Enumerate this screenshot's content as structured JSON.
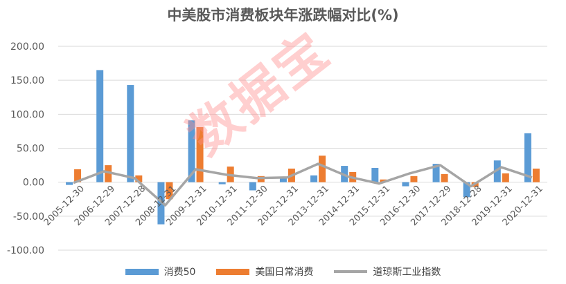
{
  "watermark": "数据宝",
  "colors": {
    "consumer50": "#5b9bd5",
    "us_staples": "#ed7d31",
    "dow": "#a5a5a5",
    "grid": "#d9d9d9",
    "axis_text": "#595959"
  },
  "chart_data": {
    "type": "bar",
    "title": "中美股市消费板块年涨跌幅对比(%)",
    "xlabel": "",
    "ylabel": "",
    "ylim": [
      -100,
      200
    ],
    "yticks": [
      -100,
      -50,
      0,
      50,
      100,
      150,
      200
    ],
    "ytick_labels": [
      "-100.00",
      "-50.00",
      "0.00",
      "50.00",
      "100.00",
      "150.00",
      "200.00"
    ],
    "grid": true,
    "legend": "bottom",
    "categories": [
      "2005-12-30",
      "2006-12-29",
      "2007-12-28",
      "2008-12-31",
      "2009-12-31",
      "2010-12-31",
      "2011-12-30",
      "2012-12-31",
      "2013-12-31",
      "2014-12-31",
      "2015-12-31",
      "2016-12-30",
      "2017-12-29",
      "2018-12-28",
      "2019-12-31",
      "2020-12-31"
    ],
    "series": [
      {
        "name": "消费50",
        "type": "bar",
        "values": [
          -4,
          165,
          143,
          -62,
          91,
          -3,
          -12,
          8,
          10,
          24,
          21,
          -6,
          27,
          -22,
          32,
          72
        ]
      },
      {
        "name": "美国日常消费",
        "type": "bar",
        "values": [
          19,
          25,
          10,
          -25,
          81,
          23,
          9,
          20,
          39,
          15,
          4,
          9,
          12,
          -7,
          13,
          20
        ]
      },
      {
        "name": "道琼斯工业指数",
        "type": "line",
        "values": [
          -1,
          16,
          6,
          -34,
          19,
          11,
          6,
          7,
          27,
          8,
          -2,
          13,
          25,
          -6,
          22,
          7
        ]
      }
    ]
  }
}
